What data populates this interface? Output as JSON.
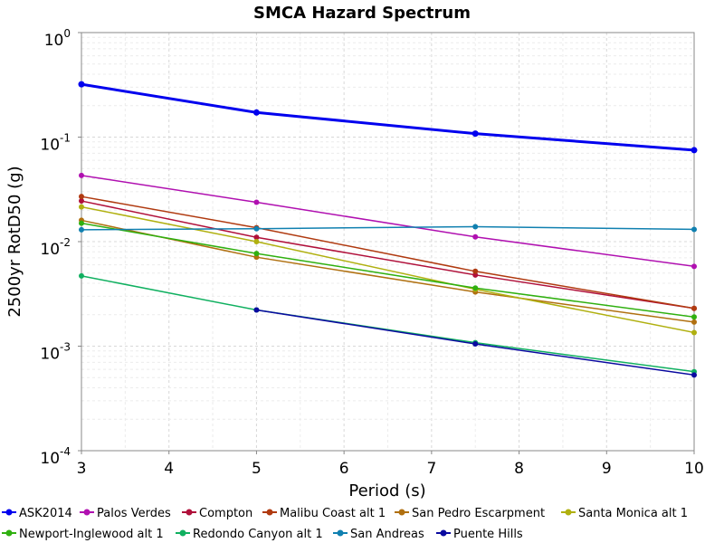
{
  "chart_data": {
    "type": "line",
    "title": "SMCA Hazard Spectrum",
    "xlabel": "Period (s)",
    "ylabel": "2500yr RotD50 (g)",
    "xlim": [
      3,
      10
    ],
    "ylim": [
      0.0001,
      1
    ],
    "yscale": "log",
    "grid": true,
    "legend_placement": "bottom",
    "x_ticks": [
      "3",
      "4",
      "5",
      "6",
      "7",
      "8",
      "9",
      "10"
    ],
    "y_ticks": [
      {
        "value": 1,
        "base": "10",
        "exp": "0"
      },
      {
        "value": 0.1,
        "base": "10",
        "exp": "-1"
      },
      {
        "value": 0.01,
        "base": "10",
        "exp": "-2"
      },
      {
        "value": 0.001,
        "base": "10",
        "exp": "-3"
      },
      {
        "value": 0.0001,
        "base": "10",
        "exp": "-4"
      }
    ],
    "x": [
      3,
      5,
      7.5,
      10
    ],
    "series": [
      {
        "name": "ASK2014",
        "color": "#0000ee",
        "width": 3,
        "values": [
          0.32,
          0.172,
          0.108,
          0.075
        ]
      },
      {
        "name": "Palos Verdes",
        "color": "#b010b0",
        "width": 1.5,
        "values": [
          0.043,
          0.0238,
          0.0111,
          0.0058
        ]
      },
      {
        "name": "Compton",
        "color": "#b0103a",
        "width": 1.5,
        "values": [
          0.0245,
          0.011,
          0.0048,
          0.0023
        ]
      },
      {
        "name": "Malibu Coast alt 1",
        "color": "#b03a10",
        "width": 1.5,
        "values": [
          0.027,
          0.0136,
          0.0052,
          0.0023
        ]
      },
      {
        "name": "San Pedro Escarpment",
        "color": "#b07010",
        "width": 1.5,
        "values": [
          0.016,
          0.0071,
          0.0033,
          0.0017
        ]
      },
      {
        "name": "Santa Monica alt 1",
        "color": "#b0b010",
        "width": 1.5,
        "values": [
          0.0215,
          0.01,
          0.0035,
          0.00135
        ]
      },
      {
        "name": "Newport-Inglewood alt 1",
        "color": "#30b010",
        "width": 1.5,
        "values": [
          0.015,
          0.0077,
          0.0036,
          0.0019
        ]
      },
      {
        "name": "Redondo Canyon alt 1",
        "color": "#10b060",
        "width": 1.5,
        "values": [
          0.0047,
          0.00222,
          0.00108,
          0.00057
        ]
      },
      {
        "name": "San Andreas",
        "color": "#1080b0",
        "width": 1.5,
        "values": [
          0.013,
          0.0133,
          0.0139,
          0.0131
        ]
      },
      {
        "name": "Puente Hills",
        "color": "#0a0aa0",
        "width": 1.5,
        "values": [
          0.0,
          0.00222,
          0.00105,
          0.00053
        ]
      }
    ]
  }
}
